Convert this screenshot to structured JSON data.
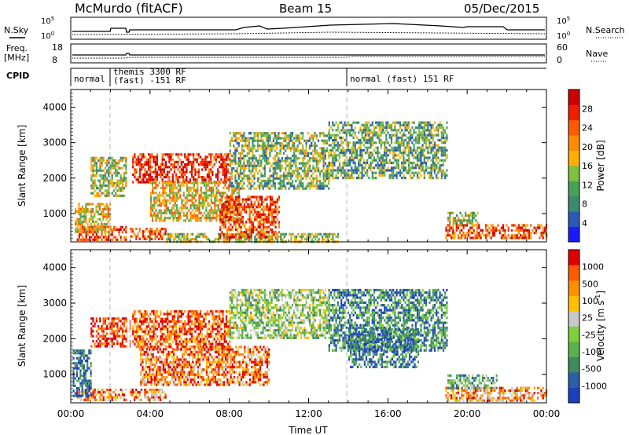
{
  "header": {
    "station": "McMurdo (fitACF)",
    "beam": "Beam 15",
    "date": "05/Dec/2015"
  },
  "strip_panels": {
    "nsky": {
      "left_label": "N.Sky",
      "right_label": "N.Search",
      "left_ticks": [
        "10^5",
        "10^0"
      ],
      "right_ticks": [
        "10^5",
        "10^0"
      ]
    },
    "freq": {
      "left_label_1": "Freq.",
      "left_label_2": "[MHz]",
      "right_label": "Nave",
      "left_ticks": [
        "18",
        "8"
      ],
      "right_ticks": [
        "60",
        "0"
      ]
    },
    "cpid": {
      "label": "CPID",
      "segments": [
        {
          "start_hour": 0.0,
          "text_1": "normal",
          "text_2": ""
        },
        {
          "start_hour": 2.0,
          "text_1": "themis 3300 RF",
          "text_2": "(fast) -151 RF"
        },
        {
          "start_hour": 14.0,
          "text_1": "normal (fast) 151 RF",
          "text_2": ""
        }
      ]
    }
  },
  "chart_data": [
    {
      "type": "heatmap",
      "panel": "power",
      "ylabel": "Slant Range [km]",
      "ylim": [
        200,
        4500
      ],
      "yticks": [
        "1000",
        "2000",
        "3000",
        "4000"
      ],
      "xlim_hours": [
        0,
        24
      ],
      "colorbar_label": "Power [dB]",
      "colorbar_ticks": [
        "4",
        "8",
        "12",
        "16",
        "20",
        "24",
        "28"
      ],
      "colorscale": [
        "#1a1aff",
        "#2a59b8",
        "#3a8a6e",
        "#4aa058",
        "#7fc040",
        "#ffb000",
        "#ff8c00",
        "#ff5a00",
        "#f01e00",
        "#cc0000"
      ],
      "echo_regions": [
        {
          "t0": 0.3,
          "t1": 2.8,
          "r0": 250,
          "r1": 650,
          "level": 0.82
        },
        {
          "t0": 3.0,
          "t1": 4.8,
          "r0": 250,
          "r1": 600,
          "level": 0.8
        },
        {
          "t0": 4.8,
          "t1": 13.5,
          "r0": 220,
          "r1": 450,
          "level": 0.45
        },
        {
          "t0": 18.9,
          "t1": 24.0,
          "r0": 300,
          "r1": 700,
          "level": 0.78
        },
        {
          "t0": 19.0,
          "t1": 20.5,
          "r0": 700,
          "r1": 1050,
          "level": 0.45
        },
        {
          "t0": 3.1,
          "t1": 8.0,
          "r0": 1900,
          "r1": 2700,
          "level": 0.85
        },
        {
          "t0": 1.0,
          "t1": 2.8,
          "r0": 1500,
          "r1": 2600,
          "level": 0.45
        },
        {
          "t0": 4.0,
          "t1": 8.5,
          "r0": 800,
          "r1": 1900,
          "level": 0.55
        },
        {
          "t0": 7.5,
          "t1": 10.5,
          "r0": 300,
          "r1": 1500,
          "level": 0.8
        },
        {
          "t0": 8.0,
          "t1": 13.0,
          "r0": 1700,
          "r1": 3300,
          "level": 0.4
        },
        {
          "t0": 13.0,
          "t1": 19.0,
          "r0": 2000,
          "r1": 3600,
          "level": 0.35
        },
        {
          "t0": 0.2,
          "t1": 2.0,
          "r0": 500,
          "r1": 1300,
          "level": 0.55
        }
      ]
    },
    {
      "type": "heatmap",
      "panel": "velocity",
      "ylabel": "Slant Range [km]",
      "ylim": [
        200,
        4500
      ],
      "yticks": [
        "1000",
        "2000",
        "3000",
        "4000"
      ],
      "xlim_hours": [
        0,
        24
      ],
      "xticks": [
        "00:00",
        "04:00",
        "08:00",
        "12:00",
        "16:00",
        "20:00",
        "00:00"
      ],
      "xlabel": "Time UT",
      "colorbar_label": "Velocity [m s^-1]",
      "colorbar_ticks": [
        "1000",
        "500",
        "100",
        "25",
        "-25",
        "-100",
        "-500",
        "-1000"
      ],
      "colorscale": [
        "#1a3fbf",
        "#2a5fa8",
        "#3f8a5e",
        "#5ab04a",
        "#7fd03a",
        "#c8c8c8",
        "#ffc000",
        "#ff9000",
        "#ff5a00",
        "#e00000"
      ],
      "echo_regions": [
        {
          "t0": 0.3,
          "t1": 2.8,
          "r0": 250,
          "r1": 600,
          "level": 0.75
        },
        {
          "t0": 3.0,
          "t1": 4.8,
          "r0": 250,
          "r1": 600,
          "level": 0.75
        },
        {
          "t0": 18.9,
          "t1": 24.0,
          "r0": 250,
          "r1": 650,
          "level": 0.74
        },
        {
          "t0": 19.0,
          "t1": 21.5,
          "r0": 600,
          "r1": 1000,
          "level": 0.35
        },
        {
          "t0": 1.0,
          "t1": 3.0,
          "r0": 1800,
          "r1": 2600,
          "level": 0.95
        },
        {
          "t0": 3.1,
          "t1": 8.0,
          "r0": 1700,
          "r1": 2800,
          "level": 0.85
        },
        {
          "t0": 3.5,
          "t1": 10.0,
          "r0": 700,
          "r1": 1800,
          "level": 0.8
        },
        {
          "t0": 8.0,
          "t1": 13.0,
          "r0": 2000,
          "r1": 3400,
          "level": 0.45
        },
        {
          "t0": 13.0,
          "t1": 19.0,
          "r0": 1700,
          "r1": 3400,
          "level": 0.25
        },
        {
          "t0": 14.0,
          "t1": 17.5,
          "r0": 1200,
          "r1": 2300,
          "level": 0.2
        },
        {
          "t0": 0.1,
          "t1": 1.0,
          "r0": 400,
          "r1": 1700,
          "level": 0.15
        }
      ]
    }
  ]
}
